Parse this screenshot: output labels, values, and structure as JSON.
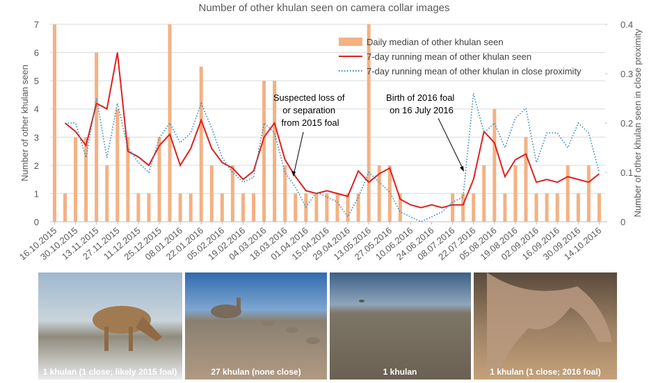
{
  "chart_data": {
    "type": "bar",
    "title": "Number of other khulan seen on camera collar images",
    "y_label": "Number of other khulan seen",
    "y2_label": "Number of other khulan seen in close proximity",
    "x": [
      "2015-10-16",
      "2015-10-23",
      "2015-10-30",
      "2015-11-06",
      "2015-11-13",
      "2015-11-20",
      "2015-11-27",
      "2015-12-04",
      "2015-12-11",
      "2015-12-18",
      "2015-12-25",
      "2016-01-01",
      "2016-01-08",
      "2016-01-15",
      "2016-01-22",
      "2016-01-29",
      "2016-02-05",
      "2016-02-12",
      "2016-02-19",
      "2016-02-26",
      "2016-03-04",
      "2016-03-11",
      "2016-03-18",
      "2016-03-25",
      "2016-04-01",
      "2016-04-08",
      "2016-04-15",
      "2016-04-22",
      "2016-04-29",
      "2016-05-06",
      "2016-05-13",
      "2016-05-20",
      "2016-05-27",
      "2016-06-03",
      "2016-06-10",
      "2016-06-17",
      "2016-06-24",
      "2016-07-01",
      "2016-07-08",
      "2016-07-15",
      "2016-07-22",
      "2016-07-29",
      "2016-08-05",
      "2016-08-12",
      "2016-08-19",
      "2016-08-26",
      "2016-09-02",
      "2016-09-09",
      "2016-09-16",
      "2016-09-23",
      "2016-09-30",
      "2016-10-07",
      "2016-10-14"
    ],
    "series": [
      {
        "name": "Daily median of other khulan seen",
        "type": "bar",
        "color": "#f4b183",
        "values": [
          7,
          1,
          3,
          3,
          6,
          2,
          4,
          3,
          1,
          1,
          3,
          7,
          1,
          1,
          5.5,
          2,
          1,
          2,
          1,
          1,
          5,
          5,
          2,
          1,
          1,
          1,
          1,
          1,
          1,
          1,
          7,
          2,
          2,
          1,
          0,
          0,
          0,
          0,
          1,
          1,
          1,
          2,
          4,
          1,
          2,
          3,
          1,
          1,
          1,
          2,
          1,
          2,
          1
        ]
      },
      {
        "name": "7-day running mean of other khulan seen",
        "type": "line",
        "color": "#e02020",
        "values": [
          null,
          3.5,
          3.2,
          2.7,
          4.2,
          4.0,
          6.0,
          2.5,
          2.3,
          2.0,
          2.7,
          3.1,
          2.0,
          2.6,
          3.6,
          2.6,
          2.1,
          1.9,
          1.5,
          1.8,
          3.0,
          3.5,
          2.2,
          1.6,
          1.1,
          1.0,
          1.1,
          1.0,
          0.9,
          1.8,
          1.4,
          1.7,
          1.9,
          0.8,
          0.6,
          0.5,
          0.6,
          0.5,
          0.6,
          0.6,
          1.5,
          3.2,
          2.8,
          1.6,
          2.2,
          2.4,
          1.4,
          1.5,
          1.4,
          1.6,
          1.5,
          1.4,
          1.7
        ]
      },
      {
        "name": "7-day running mean of other khulan in close proximity",
        "type": "line",
        "style": "dotted",
        "axis": "y2",
        "color": "#2e86c1",
        "values": [
          null,
          0.2,
          0.2,
          0.13,
          0.25,
          0.13,
          0.24,
          0.15,
          0.12,
          0.1,
          0.17,
          0.2,
          0.16,
          0.18,
          0.24,
          0.19,
          0.13,
          0.1,
          0.08,
          0.09,
          0.2,
          0.18,
          0.1,
          0.07,
          0.03,
          0.06,
          0.05,
          0.04,
          0.01,
          0.05,
          0.1,
          0.08,
          0.06,
          0.02,
          0.01,
          0,
          0.01,
          0.02,
          0.04,
          0.05,
          0.26,
          0.18,
          0.2,
          0.15,
          0.21,
          0.23,
          0.12,
          0.18,
          0.18,
          0.15,
          0.2,
          0.18,
          0.1
        ]
      }
    ],
    "xlim": [
      "2015-10-13",
      "2016-10-18"
    ],
    "xticks": [
      {
        "value": "2015-10-16",
        "label": "16.10.2015"
      },
      {
        "value": "2015-10-30",
        "label": "30.10.2015"
      },
      {
        "value": "2015-11-13",
        "label": "13.11.2015"
      },
      {
        "value": "2015-11-27",
        "label": "27.11.2015"
      },
      {
        "value": "2015-12-11",
        "label": "11.12.2015"
      },
      {
        "value": "2015-12-25",
        "label": "25.12.2015"
      },
      {
        "value": "2016-01-08",
        "label": "08.01.2016"
      },
      {
        "value": "2016-01-22",
        "label": "22.01.2016"
      },
      {
        "value": "2016-02-05",
        "label": "05.02.2016"
      },
      {
        "value": "2016-02-19",
        "label": "19.02.2016"
      },
      {
        "value": "2016-03-04",
        "label": "04.03.2016"
      },
      {
        "value": "2016-03-18",
        "label": "18.03.2016"
      },
      {
        "value": "2016-04-01",
        "label": "01.04.2016"
      },
      {
        "value": "2016-04-15",
        "label": "15.04.2016"
      },
      {
        "value": "2016-04-29",
        "label": "29.04.2016"
      },
      {
        "value": "2016-05-13",
        "label": "13.05.2016"
      },
      {
        "value": "2016-05-27",
        "label": "27.05.2016"
      },
      {
        "value": "2016-06-10",
        "label": "10.06.2016"
      },
      {
        "value": "2016-06-24",
        "label": "24.06.2016"
      },
      {
        "value": "2016-07-08",
        "label": "08.07.2016"
      },
      {
        "value": "2016-07-22",
        "label": "22.07.2016"
      },
      {
        "value": "2016-08-05",
        "label": "05.08.2016"
      },
      {
        "value": "2016-08-19",
        "label": "19.08.2016"
      },
      {
        "value": "2016-09-02",
        "label": "02.09.2016"
      },
      {
        "value": "2016-09-16",
        "label": "16.09.2016"
      },
      {
        "value": "2016-09-30",
        "label": "30.09.2016"
      },
      {
        "value": "2016-10-14",
        "label": "14.10.2016"
      }
    ],
    "ylim": [
      0,
      7
    ],
    "yticks": [
      0,
      1,
      2,
      3,
      4,
      5,
      6,
      7
    ],
    "y2lim": [
      0,
      0.4
    ],
    "y2ticks": [
      0,
      0.1,
      0.2,
      0.3,
      0.4
    ],
    "grid": true,
    "legend": "upper right",
    "annotations": [
      {
        "lines": [
          "Suspected loss of",
          "or separation",
          "from 2015 foal"
        ]
      },
      {
        "lines": [
          "Birth of 2016 foal",
          "on 16 July 2016"
        ]
      }
    ]
  },
  "photos": [
    {
      "caption": "1 khulan (1 close; likely 2015 foal)"
    },
    {
      "caption": "27 khulan (none close)"
    },
    {
      "caption": "1 khulan"
    },
    {
      "caption": "1 khulan (1 close; 2016 foal)"
    }
  ]
}
